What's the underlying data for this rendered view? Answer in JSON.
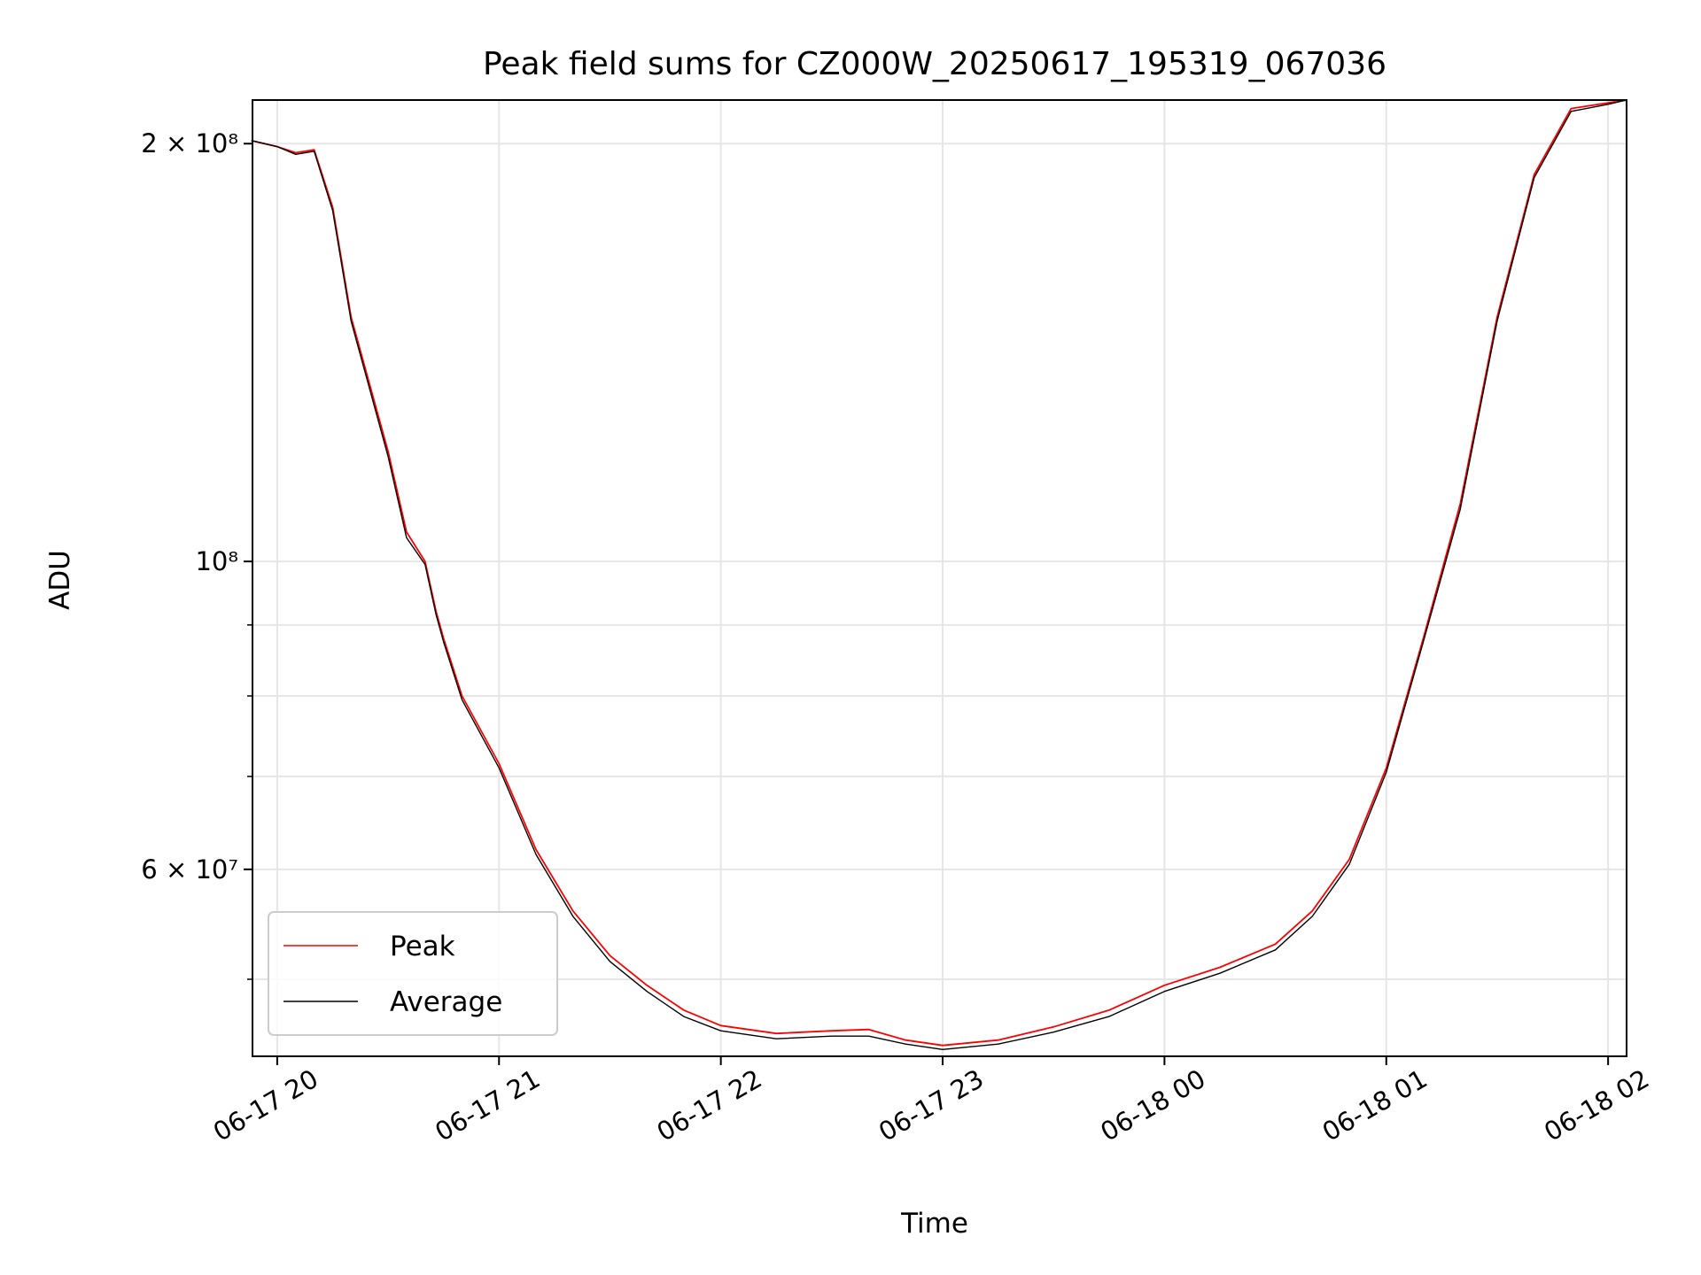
{
  "chart_data": {
    "type": "line",
    "title": "Peak field sums for CZ000W_20250617_195319_067036",
    "xlabel": "Time",
    "ylabel": "ADU",
    "y_scale": "log",
    "ylim": [
      44000000,
      215000000
    ],
    "xlim": [
      "2025-06-17 19:53:19",
      "2025-06-18 02:05:00"
    ],
    "x_ticks": [
      {
        "time": "2025-06-17 20:00",
        "label": "06-17 20"
      },
      {
        "time": "2025-06-17 21:00",
        "label": "06-17 21"
      },
      {
        "time": "2025-06-17 22:00",
        "label": "06-17 22"
      },
      {
        "time": "2025-06-17 23:00",
        "label": "06-17 23"
      },
      {
        "time": "2025-06-18 00:00",
        "label": "06-18 00"
      },
      {
        "time": "2025-06-18 01:00",
        "label": "06-18 01"
      },
      {
        "time": "2025-06-18 02:00",
        "label": "06-18 02"
      }
    ],
    "y_major_ticks": [
      {
        "value": 60000000,
        "label": "6 × 10⁷"
      },
      {
        "value": 100000000,
        "label": "10⁸"
      },
      {
        "value": 200000000,
        "label": "2 × 10⁸"
      }
    ],
    "y_minor_gridlines": [
      50000000,
      70000000,
      80000000,
      90000000
    ],
    "grid": true,
    "legend_position": "lower-left",
    "series": [
      {
        "name": "Peak",
        "color": "#ff0000",
        "x": [
          "2025-06-17 19:53",
          "2025-06-17 20:00",
          "2025-06-17 20:05",
          "2025-06-17 20:10",
          "2025-06-17 20:15",
          "2025-06-17 20:20",
          "2025-06-17 20:30",
          "2025-06-17 20:35",
          "2025-06-17 20:40",
          "2025-06-17 20:43",
          "2025-06-17 20:45",
          "2025-06-17 20:50",
          "2025-06-17 21:00",
          "2025-06-17 21:10",
          "2025-06-17 21:20",
          "2025-06-17 21:30",
          "2025-06-17 21:40",
          "2025-06-17 21:50",
          "2025-06-17 22:00",
          "2025-06-17 22:15",
          "2025-06-17 22:30",
          "2025-06-17 22:40",
          "2025-06-17 22:50",
          "2025-06-17 23:00",
          "2025-06-17 23:15",
          "2025-06-17 23:30",
          "2025-06-17 23:45",
          "2025-06-18 00:00",
          "2025-06-18 00:15",
          "2025-06-18 00:30",
          "2025-06-18 00:40",
          "2025-06-18 00:50",
          "2025-06-18 01:00",
          "2025-06-18 01:10",
          "2025-06-18 01:20",
          "2025-06-18 01:30",
          "2025-06-18 01:40",
          "2025-06-18 01:50",
          "2025-06-18 02:00",
          "2025-06-18 02:05"
        ],
        "values": [
          201000000,
          199000000,
          197000000,
          198000000,
          180000000,
          150000000,
          120000000,
          105000000,
          100000000,
          92000000,
          88000000,
          80000000,
          71500000,
          62000000,
          56000000,
          52000000,
          49500000,
          47500000,
          46300000,
          45700000,
          45900000,
          46000000,
          45200000,
          44800000,
          45200000,
          46200000,
          47500000,
          49500000,
          51000000,
          53000000,
          56000000,
          61000000,
          71000000,
          88000000,
          110000000,
          150000000,
          190000000,
          212000000,
          214000000,
          215000000
        ]
      },
      {
        "name": "Average",
        "color": "#000000",
        "x": [
          "2025-06-17 19:53",
          "2025-06-17 20:00",
          "2025-06-17 20:05",
          "2025-06-17 20:10",
          "2025-06-17 20:15",
          "2025-06-17 20:20",
          "2025-06-17 20:30",
          "2025-06-17 20:35",
          "2025-06-17 20:40",
          "2025-06-17 20:43",
          "2025-06-17 20:45",
          "2025-06-17 20:50",
          "2025-06-17 21:00",
          "2025-06-17 21:10",
          "2025-06-17 21:20",
          "2025-06-17 21:30",
          "2025-06-17 21:40",
          "2025-06-17 21:50",
          "2025-06-17 22:00",
          "2025-06-17 22:15",
          "2025-06-17 22:30",
          "2025-06-17 22:40",
          "2025-06-17 22:50",
          "2025-06-17 23:00",
          "2025-06-17 23:15",
          "2025-06-17 23:30",
          "2025-06-17 23:45",
          "2025-06-18 00:00",
          "2025-06-18 00:15",
          "2025-06-18 00:30",
          "2025-06-18 00:40",
          "2025-06-18 00:50",
          "2025-06-18 01:00",
          "2025-06-18 01:10",
          "2025-06-18 01:20",
          "2025-06-18 01:30",
          "2025-06-18 01:40",
          "2025-06-18 01:50",
          "2025-06-18 02:00",
          "2025-06-18 02:05"
        ],
        "values": [
          201000000,
          199000000,
          196500000,
          197500000,
          179000000,
          149000000,
          119000000,
          104000000,
          99500000,
          91500000,
          87500000,
          79500000,
          71000000,
          61500000,
          55500000,
          51500000,
          49000000,
          47000000,
          45900000,
          45300000,
          45500000,
          45500000,
          44900000,
          44500000,
          44900000,
          45800000,
          47000000,
          49000000,
          50500000,
          52500000,
          55500000,
          60500000,
          70500000,
          87500000,
          109000000,
          149000000,
          189000000,
          211000000,
          213500000,
          215000000
        ]
      }
    ]
  }
}
